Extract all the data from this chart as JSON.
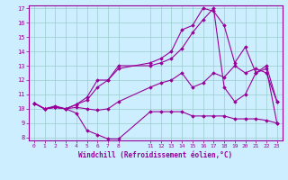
{
  "xlabel": "Windchill (Refroidissement éolien,°C)",
  "background_color": "#cceeff",
  "line_color": "#990099",
  "grid_color": "#99cccc",
  "xlim": [
    -0.5,
    23.5
  ],
  "ylim": [
    7.8,
    17.2
  ],
  "xticks": [
    0,
    1,
    2,
    3,
    4,
    5,
    6,
    7,
    8,
    11,
    12,
    13,
    14,
    15,
    16,
    17,
    18,
    19,
    20,
    21,
    22,
    23
  ],
  "yticks": [
    8,
    9,
    10,
    11,
    12,
    13,
    14,
    15,
    16,
    17
  ],
  "lines": [
    {
      "x": [
        0,
        1,
        2,
        3,
        4,
        5,
        6,
        7,
        8,
        11,
        12,
        13,
        14,
        15,
        16,
        17,
        18,
        19,
        20,
        21,
        22,
        23
      ],
      "y": [
        10.4,
        10.0,
        10.1,
        10.0,
        9.7,
        8.5,
        8.2,
        7.9,
        7.9,
        9.8,
        9.8,
        9.8,
        9.8,
        9.5,
        9.5,
        9.5,
        9.5,
        9.3,
        9.3,
        9.3,
        9.2,
        9.0
      ]
    },
    {
      "x": [
        0,
        1,
        2,
        3,
        4,
        5,
        6,
        7,
        8,
        11,
        12,
        13,
        14,
        15,
        16,
        17,
        18,
        19,
        20,
        21,
        22,
        23
      ],
      "y": [
        10.4,
        10.0,
        10.1,
        10.0,
        10.1,
        10.0,
        9.9,
        10.0,
        10.5,
        11.5,
        11.8,
        12.0,
        12.5,
        11.5,
        11.8,
        12.5,
        12.2,
        13.0,
        12.5,
        12.8,
        12.5,
        10.5
      ]
    },
    {
      "x": [
        0,
        1,
        2,
        3,
        4,
        5,
        6,
        7,
        8,
        11,
        12,
        13,
        14,
        15,
        16,
        17,
        18,
        19,
        20,
        21,
        22,
        23
      ],
      "y": [
        10.4,
        10.0,
        10.1,
        10.0,
        10.3,
        10.6,
        11.5,
        12.0,
        13.0,
        13.0,
        13.2,
        13.5,
        14.2,
        15.3,
        16.2,
        17.0,
        11.5,
        10.5,
        11.0,
        12.5,
        13.0,
        10.5
      ]
    },
    {
      "x": [
        0,
        1,
        2,
        3,
        4,
        5,
        6,
        7,
        8,
        11,
        12,
        13,
        14,
        15,
        16,
        17,
        18,
        19,
        20,
        21,
        22,
        23
      ],
      "y": [
        10.4,
        10.0,
        10.2,
        10.0,
        10.3,
        10.8,
        12.0,
        12.0,
        12.8,
        13.2,
        13.5,
        14.0,
        15.5,
        15.8,
        17.0,
        16.8,
        15.8,
        13.2,
        14.3,
        12.5,
        12.8,
        9.0
      ]
    }
  ]
}
